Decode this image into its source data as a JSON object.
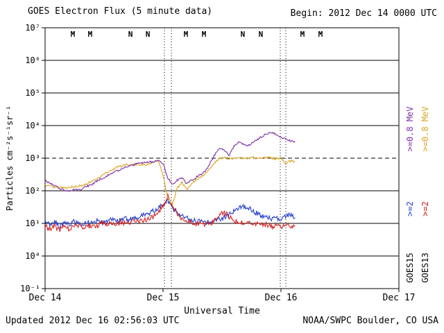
{
  "header": {
    "title": "GOES Electron Flux (5 minute data)",
    "begin_label": "Begin: 2012 Dec 14 0000 UTC"
  },
  "footer": {
    "updated": "Updated 2012 Dec 16 02:56:03 UTC",
    "source": "NOAA/SWPC Boulder, CO USA"
  },
  "axes": {
    "ylabel": "Particles cm⁻²s⁻¹sr⁻¹",
    "xlabel": "Universal Time"
  },
  "legend": {
    "goes15": {
      "name": "GOES15",
      "e08_label": ">=0.8 MeV",
      "e2_label": ">=2",
      "e08_color": "#7d2fa8",
      "e2_color": "#2540cc"
    },
    "goes13": {
      "name": "GOES13",
      "e08_label": ">=0.8 MeV",
      "e2_label": ">=2",
      "e08_color": "#d9a520",
      "e2_color": "#d42020"
    }
  },
  "chart_data": {
    "type": "line",
    "title": "GOES Electron Flux (5 minute data)",
    "xlabel": "Universal Time",
    "ylabel": "Particles cm-2 s-1 sr-1",
    "y_scale": "log10",
    "y_exponent_range": [
      -1,
      7
    ],
    "x_range_days": [
      0,
      3
    ],
    "y_tick_exponents": [
      7,
      6,
      5,
      4,
      3,
      2,
      1,
      0,
      -1
    ],
    "y_tick_labels": [
      "10⁷",
      "10⁶",
      "10⁵",
      "10⁴",
      "10³",
      "10²",
      "10¹",
      "10⁰",
      "10⁻¹"
    ],
    "x_tick_days": [
      0,
      1,
      2,
      3
    ],
    "x_tick_labels": [
      "Dec 14",
      "Dec 15",
      "Dec 16",
      "Dec 17"
    ],
    "threshold": {
      "flux": 1000,
      "style": "dashed"
    },
    "day_dotted_lines_days": [
      1.012,
      1.071,
      1.994,
      2.041
    ],
    "top_markers": [
      {
        "label": "M",
        "sat": "goes13",
        "day": 0.235
      },
      {
        "label": "M",
        "sat": "goes15",
        "day": 0.382
      },
      {
        "label": "N",
        "sat": "goes13",
        "day": 0.724
      },
      {
        "label": "N",
        "sat": "goes15",
        "day": 0.871
      },
      {
        "label": "M",
        "sat": "goes13",
        "day": 1.194
      },
      {
        "label": "M",
        "sat": "goes15",
        "day": 1.347
      },
      {
        "label": "N",
        "sat": "goes13",
        "day": 1.676
      },
      {
        "label": "N",
        "sat": "goes15",
        "day": 1.829
      },
      {
        "label": "M",
        "sat": "goes13",
        "day": 2.182
      },
      {
        "label": "M",
        "sat": "goes15",
        "day": 2.335
      }
    ],
    "x_days": [
      0,
      0.04,
      0.08,
      0.12,
      0.16,
      0.2,
      0.24,
      0.28,
      0.32,
      0.36,
      0.4,
      0.44,
      0.48,
      0.52,
      0.56,
      0.6,
      0.64,
      0.68,
      0.72,
      0.76,
      0.8,
      0.84,
      0.88,
      0.92,
      0.96,
      1,
      1.04,
      1.08,
      1.12,
      1.16,
      1.2,
      1.24,
      1.28,
      1.32,
      1.36,
      1.4,
      1.44,
      1.48,
      1.52,
      1.56,
      1.6,
      1.64,
      1.68,
      1.72,
      1.76,
      1.8,
      1.84,
      1.88,
      1.92,
      1.96,
      2,
      2.04,
      2.08,
      2.12
    ],
    "series": [
      {
        "name": "GOES15 >=2 MeV",
        "sat": "goes15",
        "color": "#2540cc",
        "noise_dex": 0.08,
        "flux": [
          11,
          9,
          12,
          8,
          10,
          9,
          11,
          10,
          9,
          11,
          10,
          12,
          10,
          11,
          13,
          11,
          12,
          14,
          13,
          15,
          16,
          18,
          20,
          24,
          30,
          38,
          48,
          30,
          22,
          18,
          15,
          13,
          12,
          12,
          11,
          12,
          13,
          14,
          15,
          18,
          24,
          30,
          33,
          30,
          25,
          20,
          17,
          15,
          14,
          15,
          14,
          16,
          18,
          15
        ]
      },
      {
        "name": "GOES13 >=2 MeV",
        "sat": "goes13",
        "color": "#d42020",
        "noise_dex": 0.08,
        "flux": [
          8,
          7,
          9,
          6,
          8,
          7,
          8,
          9,
          7,
          8,
          9,
          8,
          10,
          9,
          10,
          9,
          11,
          10,
          11,
          12,
          12,
          13,
          14,
          16,
          22,
          35,
          70,
          35,
          20,
          14,
          12,
          11,
          10,
          10,
          9,
          10,
          12,
          18,
          22,
          16,
          12,
          11,
          10,
          10,
          9,
          10,
          9,
          9,
          8,
          9,
          8,
          9,
          8,
          8
        ]
      },
      {
        "name": "GOES13 >=0.8 MeV",
        "sat": "goes13",
        "color": "#d9a520",
        "noise_dex": 0.035,
        "flux": [
          150,
          140,
          130,
          125,
          120,
          125,
          130,
          140,
          150,
          170,
          200,
          240,
          290,
          350,
          420,
          500,
          560,
          610,
          650,
          660,
          640,
          620,
          650,
          750,
          850,
          300,
          60,
          38,
          120,
          180,
          110,
          160,
          220,
          260,
          350,
          520,
          750,
          950,
          1050,
          900,
          1000,
          1100,
          950,
          1000,
          1050,
          950,
          1000,
          1100,
          1000,
          950,
          1000,
          700,
          820,
          800
        ]
      },
      {
        "name": "GOES15 >=0.8 MeV",
        "sat": "goes15",
        "color": "#7d2fa8",
        "noise_dex": 0.03,
        "flux": [
          210,
          170,
          140,
          120,
          105,
          100,
          110,
          105,
          120,
          140,
          160,
          200,
          240,
          280,
          330,
          390,
          450,
          520,
          580,
          640,
          700,
          730,
          760,
          800,
          850,
          700,
          250,
          160,
          210,
          260,
          160,
          210,
          260,
          310,
          420,
          700,
          1300,
          2100,
          1700,
          1200,
          2300,
          3100,
          2700,
          2400,
          2900,
          3800,
          4600,
          5600,
          6100,
          5300,
          4400,
          3900,
          3400,
          3100
        ]
      }
    ]
  }
}
